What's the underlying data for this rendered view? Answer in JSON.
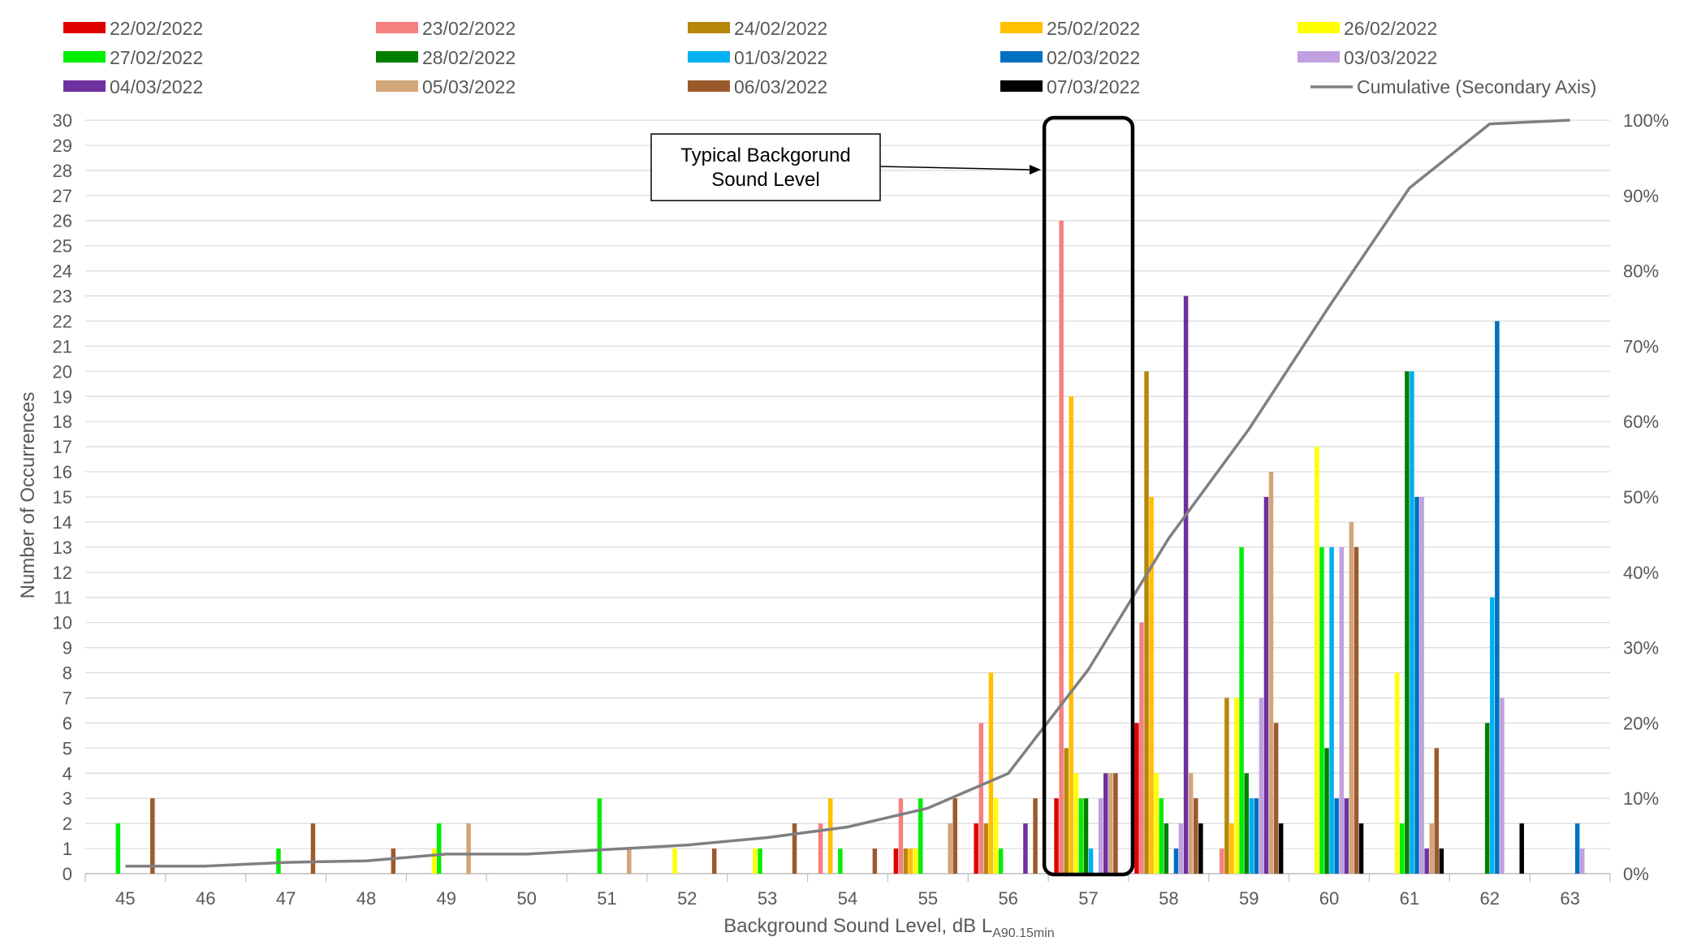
{
  "chart_data": {
    "type": "bar",
    "title": "",
    "xlabel": "Background Sound Level, dB L",
    "xlabel_subscript": "A90,15min",
    "ylabel": "Number of Occurrences",
    "y2label": "",
    "legend_position": "top",
    "grid": true,
    "ylim": [
      0,
      30
    ],
    "y_ticks": [
      "0",
      "1",
      "2",
      "3",
      "4",
      "5",
      "6",
      "7",
      "8",
      "9",
      "10",
      "11",
      "12",
      "13",
      "14",
      "15",
      "16",
      "17",
      "18",
      "19",
      "20",
      "21",
      "22",
      "23",
      "24",
      "25",
      "26",
      "27",
      "28",
      "29",
      "30"
    ],
    "y2lim": [
      0,
      100
    ],
    "y2_ticks": [
      "0%",
      "10%",
      "20%",
      "30%",
      "40%",
      "50%",
      "60%",
      "70%",
      "80%",
      "90%",
      "100%"
    ],
    "categories": [
      "45",
      "46",
      "47",
      "48",
      "49",
      "50",
      "51",
      "52",
      "53",
      "54",
      "55",
      "56",
      "57",
      "58",
      "59",
      "60",
      "61",
      "62",
      "63"
    ],
    "series": [
      {
        "name": "22/02/2022",
        "color": "#e00000",
        "values": [
          0,
          0,
          0,
          0,
          0,
          0,
          0,
          0,
          0,
          0,
          1,
          2,
          3,
          6,
          0,
          0,
          0,
          0,
          0
        ]
      },
      {
        "name": "23/02/2022",
        "color": "#f58080",
        "values": [
          0,
          0,
          0,
          0,
          0,
          0,
          0,
          0,
          0,
          2,
          3,
          6,
          26,
          10,
          1,
          0,
          0,
          0,
          0
        ]
      },
      {
        "name": "24/02/2022",
        "color": "#b8860b",
        "values": [
          0,
          0,
          0,
          0,
          0,
          0,
          0,
          0,
          0,
          0,
          1,
          2,
          5,
          20,
          7,
          0,
          0,
          0,
          0
        ]
      },
      {
        "name": "25/02/2022",
        "color": "#ffc000",
        "values": [
          0,
          0,
          0,
          0,
          0,
          0,
          0,
          0,
          0,
          3,
          1,
          8,
          19,
          15,
          2,
          0,
          0,
          0,
          0
        ]
      },
      {
        "name": "26/02/2022",
        "color": "#ffff00",
        "values": [
          0,
          0,
          0,
          0,
          1,
          0,
          0,
          1,
          1,
          0,
          1,
          3,
          4,
          4,
          7,
          17,
          8,
          0,
          0
        ]
      },
      {
        "name": "27/02/2022",
        "color": "#00ee00",
        "values": [
          2,
          0,
          1,
          0,
          2,
          0,
          3,
          0,
          1,
          1,
          3,
          1,
          3,
          3,
          13,
          13,
          2,
          0,
          0
        ]
      },
      {
        "name": "28/02/2022",
        "color": "#008000",
        "values": [
          0,
          0,
          0,
          0,
          0,
          0,
          0,
          0,
          0,
          0,
          0,
          0,
          3,
          2,
          4,
          5,
          20,
          6,
          0
        ]
      },
      {
        "name": "01/03/2022",
        "color": "#00b0f0",
        "values": [
          0,
          0,
          0,
          0,
          0,
          0,
          0,
          0,
          0,
          0,
          0,
          0,
          1,
          0,
          3,
          13,
          20,
          11,
          0
        ]
      },
      {
        "name": "02/03/2022",
        "color": "#0070c0",
        "values": [
          0,
          0,
          0,
          0,
          0,
          0,
          0,
          0,
          0,
          0,
          0,
          0,
          0,
          1,
          3,
          3,
          15,
          22,
          2
        ]
      },
      {
        "name": "03/03/2022",
        "color": "#c0a0e0",
        "values": [
          0,
          0,
          0,
          0,
          0,
          0,
          0,
          0,
          0,
          0,
          0,
          0,
          3,
          2,
          7,
          13,
          15,
          7,
          1
        ]
      },
      {
        "name": "04/03/2022",
        "color": "#7030a0",
        "values": [
          0,
          0,
          0,
          0,
          0,
          0,
          0,
          0,
          0,
          0,
          0,
          2,
          4,
          23,
          15,
          3,
          1,
          0,
          0
        ]
      },
      {
        "name": "05/03/2022",
        "color": "#d2a679",
        "values": [
          0,
          0,
          0,
          0,
          2,
          0,
          1,
          0,
          0,
          0,
          2,
          0,
          4,
          4,
          16,
          14,
          2,
          0,
          0
        ]
      },
      {
        "name": "06/03/2022",
        "color": "#9c5a2c",
        "values": [
          3,
          0,
          2,
          1,
          0,
          0,
          0,
          1,
          2,
          1,
          3,
          3,
          4,
          3,
          6,
          13,
          5,
          0,
          0
        ]
      },
      {
        "name": "07/03/2022",
        "color": "#000000",
        "values": [
          0,
          0,
          0,
          0,
          0,
          0,
          0,
          0,
          0,
          0,
          0,
          0,
          0,
          2,
          2,
          2,
          1,
          2,
          0
        ]
      }
    ],
    "line_series": {
      "name": "Cumulative (Secondary Axis)",
      "color": "#808080",
      "axis": "secondary",
      "values": [
        1,
        1,
        1.5,
        1.7,
        2.6,
        2.6,
        3.2,
        3.8,
        4.8,
        6.2,
        8.7,
        13.3,
        27.1,
        44.5,
        59,
        75.3,
        91,
        99.5,
        100
      ]
    },
    "annotation": {
      "line1": "Typical Backgorund",
      "line2": "Sound Level",
      "highlight_category": "57"
    }
  }
}
